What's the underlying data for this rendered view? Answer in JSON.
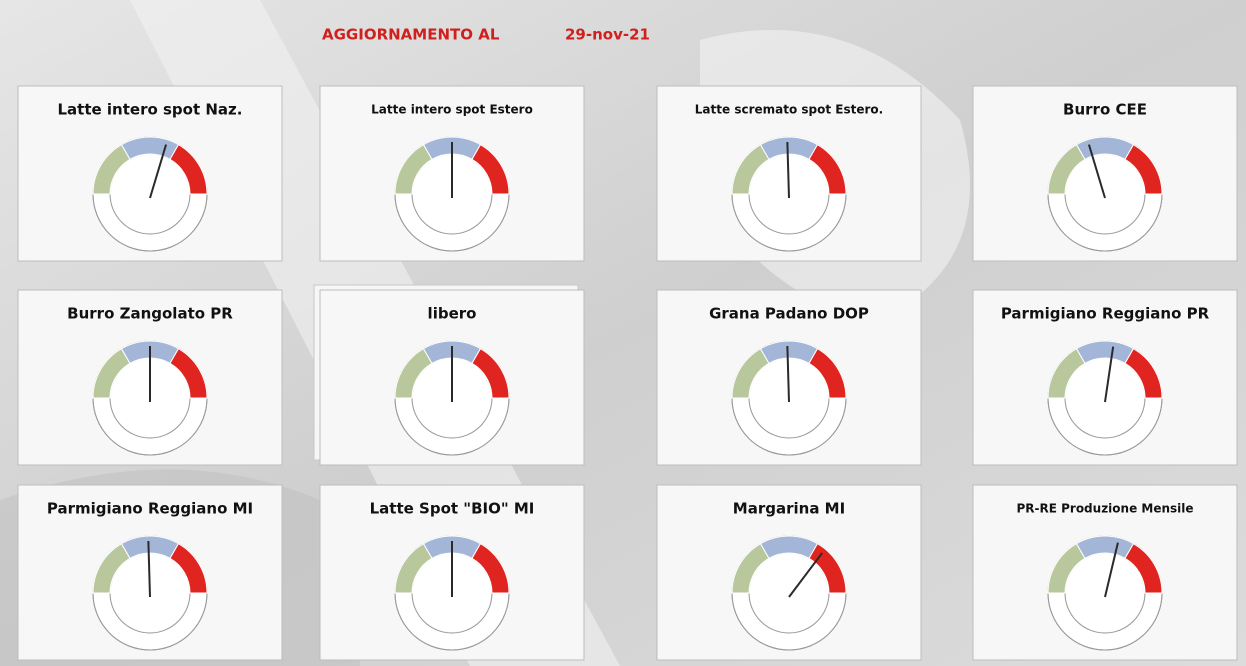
{
  "header": {
    "label": "AGGIORNAMENTO AL",
    "date": "29-nov-21"
  },
  "style": {
    "zone_colors": [
      "#b8c79c",
      "#a3b6d8",
      "#e0241f"
    ],
    "needle_color": "#2a2a2a"
  },
  "chart_data": [
    {
      "type": "gauge",
      "title": "Latte intero spot Naz.",
      "value": 60,
      "ylim": [
        0,
        100
      ]
    },
    {
      "type": "gauge",
      "title": "Latte intero spot Estero",
      "value": 50,
      "ylim": [
        0,
        100
      ]
    },
    {
      "type": "gauge",
      "title": "Latte scremato spot Estero.",
      "value": 49,
      "ylim": [
        0,
        100
      ]
    },
    {
      "type": "gauge",
      "title": "Burro CEE",
      "value": 40,
      "ylim": [
        0,
        100
      ]
    },
    {
      "type": "gauge",
      "title": "Burro Zangolato PR",
      "value": 50,
      "ylim": [
        0,
        100
      ]
    },
    {
      "type": "gauge",
      "title": "libero",
      "value": 50,
      "ylim": [
        0,
        100
      ]
    },
    {
      "type": "gauge",
      "title": "Grana Padano DOP",
      "value": 49,
      "ylim": [
        0,
        100
      ]
    },
    {
      "type": "gauge",
      "title": "Parmigiano Reggiano PR",
      "value": 55,
      "ylim": [
        0,
        100
      ]
    },
    {
      "type": "gauge",
      "title": "Parmigiano Reggiano MI",
      "value": 49,
      "ylim": [
        0,
        100
      ]
    },
    {
      "type": "gauge",
      "title": "Latte Spot \"BIO\" MI",
      "value": 50,
      "ylim": [
        0,
        100
      ]
    },
    {
      "type": "gauge",
      "title": "Margarina MI",
      "value": 72,
      "ylim": [
        0,
        100
      ]
    },
    {
      "type": "gauge",
      "title": "PR-RE Produzione Mensile",
      "value": 58,
      "ylim": [
        0,
        100
      ]
    }
  ]
}
